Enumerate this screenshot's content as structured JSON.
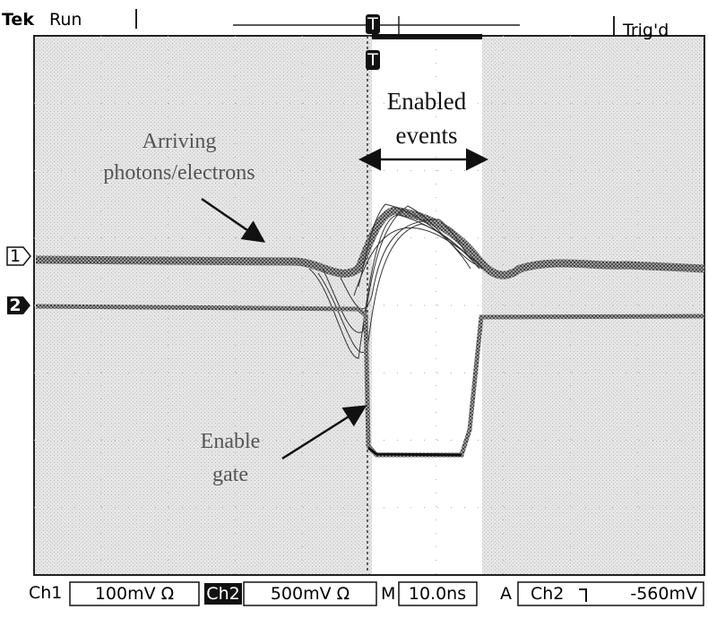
{
  "header": {
    "brand": "Tek",
    "status": "Run",
    "trigger_status": "Trig'd"
  },
  "markers": {
    "channel_1": "1",
    "channel_2": "2",
    "trigger": "T"
  },
  "annotations": {
    "enabled_events": [
      "Enabled",
      "events"
    ],
    "arriving": [
      "Arriving",
      "photons/electrons"
    ],
    "enable_gate": [
      "Enable",
      "gate"
    ]
  },
  "status_bar": {
    "ch1_label": "Ch1",
    "ch1_scale": "100mV Ω",
    "ch2_label": "Ch2",
    "ch2_scale": "500mV Ω",
    "timebase_label": "M",
    "timebase": "10.0ns",
    "trigger_label": "A",
    "trigger_source": "Ch2",
    "trigger_level": "-560mV"
  }
}
